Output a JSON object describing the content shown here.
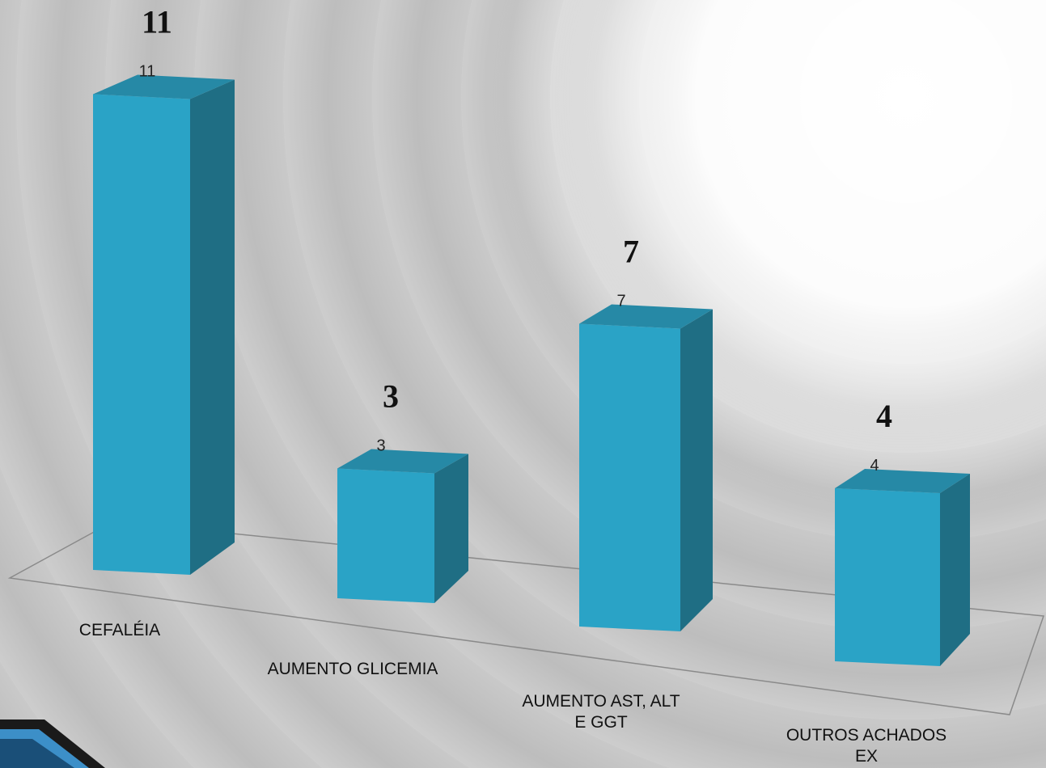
{
  "chart_data": {
    "type": "bar",
    "categories": [
      "CEFALÉIA",
      "AUMENTO GLICEMIA",
      "AUMENTO AST, ALT E GGT",
      "OUTROS ACHADOS EX"
    ],
    "category_lines": [
      [
        "CEFALÉIA"
      ],
      [
        "AUMENTO GLICEMIA"
      ],
      [
        "AUMENTO AST, ALT",
        "E GGT"
      ],
      [
        "OUTROS ACHADOS",
        "EX"
      ]
    ],
    "values": [
      11,
      3,
      7,
      4
    ],
    "data_labels": [
      "11",
      "3",
      "7",
      "4"
    ],
    "annotations": [
      "11",
      "3",
      "7",
      "4"
    ],
    "colors": {
      "front": "#2aa3c6",
      "side": "#1f6e84",
      "top": "#2689a6",
      "floor_line": "#8a8a8a",
      "accent_blue": "#3c8fc8"
    },
    "style": "3d-column"
  }
}
